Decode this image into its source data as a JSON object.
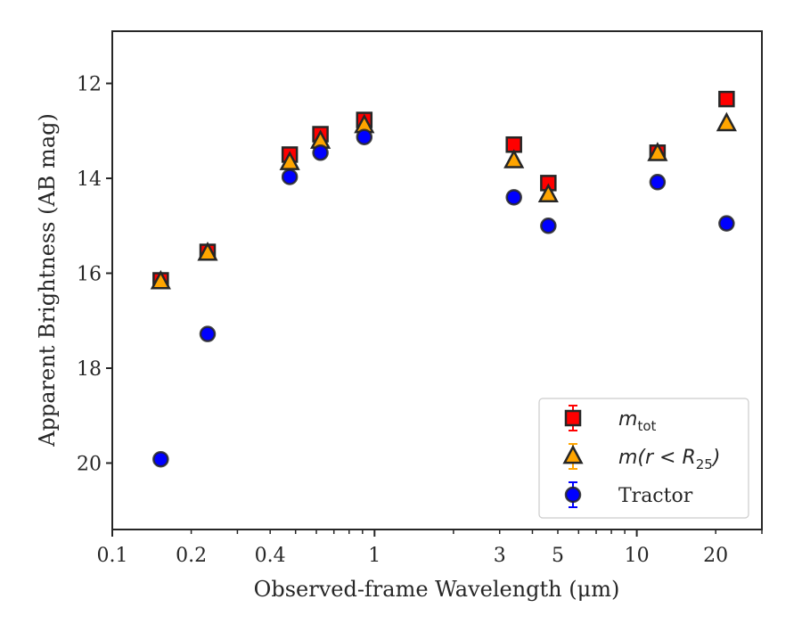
{
  "chart_data": {
    "type": "scatter",
    "title": "",
    "xlabel": "Observed-frame Wavelength (μm)",
    "ylabel": "Apparent Brightness (AB mag)",
    "xscale": "log",
    "xlim": [
      0.1,
      30
    ],
    "ylim": [
      21.4,
      10.9
    ],
    "y_inverted": true,
    "x_ticks": [
      0.1,
      0.2,
      0.4,
      1,
      3,
      5,
      10,
      20
    ],
    "x_tick_labels": [
      "0.1",
      "0.2",
      "0.4",
      "1",
      "3",
      "5",
      "10",
      "20"
    ],
    "y_ticks": [
      12,
      14,
      16,
      18,
      20
    ],
    "y_tick_labels": [
      "12",
      "14",
      "16",
      "18",
      "20"
    ],
    "grid": false,
    "legend_position": "bottom-right",
    "series": [
      {
        "name": "m_tot",
        "legend_label": {
          "base": "m",
          "sub": "tot",
          "rest": ""
        },
        "marker": "square",
        "color": "#ff0000",
        "edge_color": "#262626",
        "points": [
          {
            "x": 0.153,
            "y": 16.15
          },
          {
            "x": 0.231,
            "y": 15.55
          },
          {
            "x": 0.475,
            "y": 13.5
          },
          {
            "x": 0.622,
            "y": 13.07
          },
          {
            "x": 0.914,
            "y": 12.77
          },
          {
            "x": 3.4,
            "y": 13.29
          },
          {
            "x": 4.6,
            "y": 14.1
          },
          {
            "x": 12.0,
            "y": 13.46
          },
          {
            "x": 22.0,
            "y": 12.33
          }
        ]
      },
      {
        "name": "m(r < R_25)",
        "legend_label": {
          "base": "m(r < R",
          "sub": "25",
          "rest": ")"
        },
        "marker": "triangle",
        "color": "#ffa500",
        "edge_color": "#262626",
        "points": [
          {
            "x": 0.153,
            "y": 16.18
          },
          {
            "x": 0.231,
            "y": 15.58
          },
          {
            "x": 0.475,
            "y": 13.67
          },
          {
            "x": 0.622,
            "y": 13.22
          },
          {
            "x": 0.914,
            "y": 12.89
          },
          {
            "x": 3.4,
            "y": 13.63
          },
          {
            "x": 4.6,
            "y": 14.35
          },
          {
            "x": 12.0,
            "y": 13.48
          },
          {
            "x": 22.0,
            "y": 12.85
          }
        ]
      },
      {
        "name": "Tractor",
        "legend_label": {
          "base": "Tractor",
          "sub": "",
          "rest": ""
        },
        "marker": "circle",
        "color": "#0000ff",
        "edge_color": "#262626",
        "points": [
          {
            "x": 0.153,
            "y": 19.92
          },
          {
            "x": 0.231,
            "y": 17.28
          },
          {
            "x": 0.475,
            "y": 13.97
          },
          {
            "x": 0.622,
            "y": 13.46
          },
          {
            "x": 0.914,
            "y": 13.13
          },
          {
            "x": 3.4,
            "y": 14.4
          },
          {
            "x": 4.6,
            "y": 15.0
          },
          {
            "x": 12.0,
            "y": 14.08
          },
          {
            "x": 22.0,
            "y": 14.95
          }
        ]
      }
    ]
  }
}
